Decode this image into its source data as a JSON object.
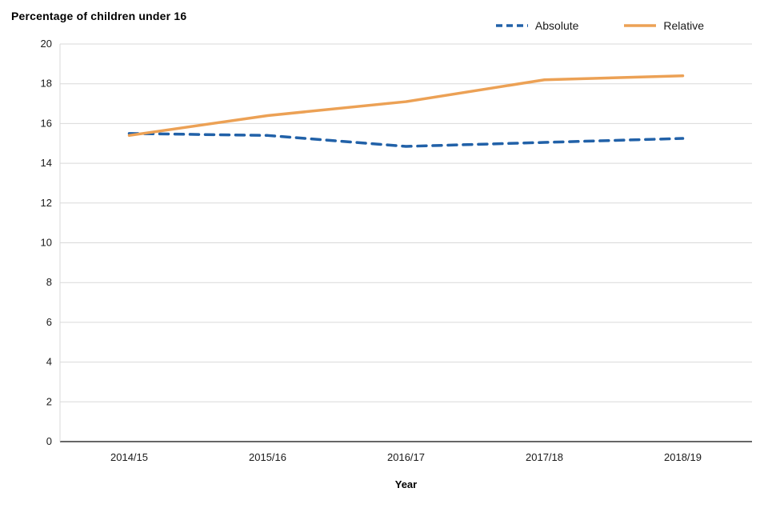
{
  "chart_data": {
    "type": "line",
    "title": "Percentage of children under 16",
    "xlabel": "Year",
    "ylabel": "",
    "categories": [
      "2014/15",
      "2015/16",
      "2016/17",
      "2017/18",
      "2018/19"
    ],
    "series": [
      {
        "name": "Absolute",
        "color": "#2161a8",
        "dash": "dashed",
        "values": [
          15.5,
          15.4,
          14.85,
          15.05,
          15.25
        ]
      },
      {
        "name": "Relative",
        "color": "#eca155",
        "dash": "solid",
        "values": [
          15.4,
          16.4,
          17.1,
          18.2,
          18.4
        ]
      }
    ],
    "ylim": [
      0,
      20
    ],
    "ytick_step": 2,
    "grid": true,
    "legend_position": "top-right",
    "colors": {
      "gridline": "#d9d9d9",
      "axis_line": "#333333",
      "left_axis_line": "#d9d9d9"
    }
  }
}
